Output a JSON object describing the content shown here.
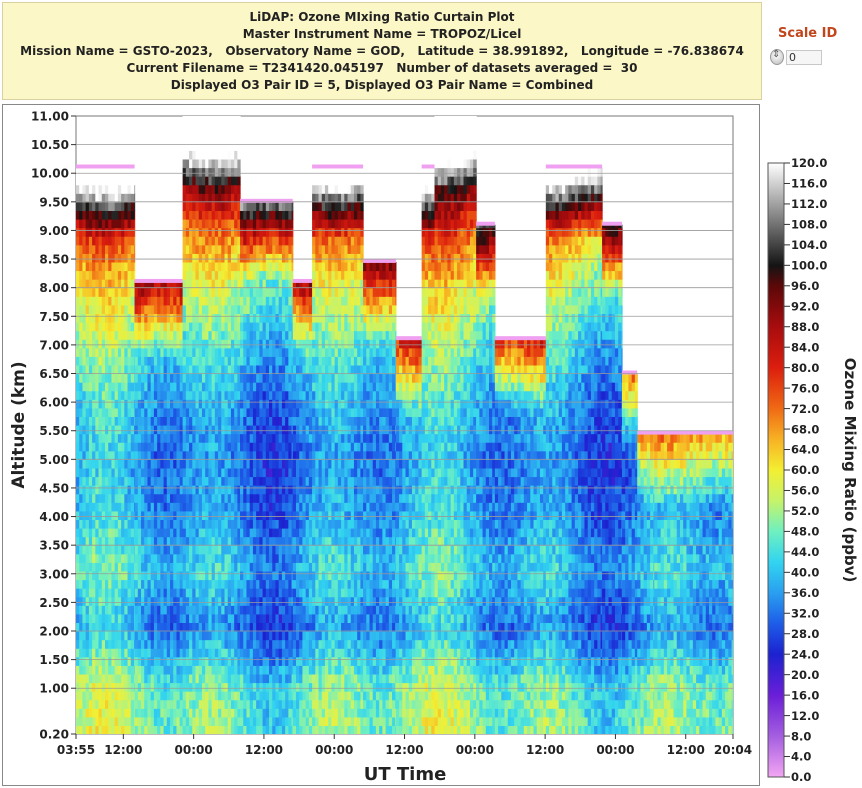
{
  "header": {
    "line1": "LiDAP: Ozone MIxing Ratio Curtain Plot",
    "line2": "Master Instrument Name = TROPOZ/Licel",
    "line3": "Mission Name = GSTO-2023,   Observatory Name = GOD,   Latitude = 38.991892,   Longitude = -76.838674",
    "line4": "Current Filename = T2341420.045197   Number of datasets averaged =  30",
    "line5": "Displayed O3 Pair ID = 5, Displayed O3 Pair Name = Combined"
  },
  "scale": {
    "label": "Scale ID",
    "value": "0"
  },
  "colors": {
    "header_bg": "#fbf7c6",
    "scale_label": "#c0461b",
    "top_marker": "#f0a0f0",
    "no_data": "#ffffff"
  },
  "chart_data": {
    "type": "heatmap",
    "title": "",
    "xlabel": "UT Time",
    "ylabel": "Altitude (km)",
    "colorbar_label": "Ozone Mixing Ratio (ppbv)",
    "x_ticks": [
      "03:55",
      "12:00",
      "00:00",
      "12:00",
      "00:00",
      "12:00",
      "00:00",
      "12:00",
      "00:00",
      "12:00",
      "20:04"
    ],
    "x_tick_hours": [
      0,
      8.08,
      20.08,
      32.08,
      44.08,
      56.08,
      68.08,
      80.08,
      92.08,
      104.08,
      112.15
    ],
    "x_range_hours": [
      0,
      112.15
    ],
    "y_ticks": [
      "0.20",
      "1.00",
      "1.50",
      "2.00",
      "2.50",
      "3.00",
      "3.50",
      "4.00",
      "4.50",
      "5.00",
      "5.50",
      "6.00",
      "6.50",
      "7.00",
      "7.50",
      "8.00",
      "8.50",
      "9.00",
      "9.50",
      "10.00",
      "10.50",
      "11.00"
    ],
    "y_range_km": [
      0.2,
      11.0
    ],
    "colorbar_ticks": [
      "0.0",
      "4.0",
      "8.0",
      "12.0",
      "16.0",
      "20.0",
      "24.0",
      "28.0",
      "32.0",
      "36.0",
      "40.0",
      "44.0",
      "48.0",
      "52.0",
      "56.0",
      "60.0",
      "64.0",
      "68.0",
      "72.0",
      "76.0",
      "80.0",
      "84.0",
      "88.0",
      "92.0",
      "96.0",
      "100.0",
      "104.0",
      "108.0",
      "112.0",
      "116.0",
      "120.0"
    ],
    "colorbar_range": [
      0,
      120
    ],
    "data_columns": [
      {
        "t0": 0.0,
        "t1": 10.0,
        "top_km": 10.1
      },
      {
        "t0": 10.0,
        "t1": 18.2,
        "top_km": 8.1
      },
      {
        "t0": 18.2,
        "t1": 28.0,
        "top_km": 11.0
      },
      {
        "t0": 28.0,
        "t1": 37.0,
        "top_km": 9.5
      },
      {
        "t0": 37.0,
        "t1": 40.3,
        "top_km": 8.1
      },
      {
        "t0": 40.3,
        "t1": 49.0,
        "top_km": 10.1
      },
      {
        "t0": 49.0,
        "t1": 54.6,
        "top_km": 8.45
      },
      {
        "t0": 54.6,
        "t1": 59.0,
        "top_km": 7.1
      },
      {
        "t0": 59.0,
        "t1": 61.2,
        "top_km": 10.1
      },
      {
        "t0": 61.2,
        "t1": 68.3,
        "top_km": 11.0
      },
      {
        "t0": 68.3,
        "t1": 71.5,
        "top_km": 9.1
      },
      {
        "t0": 71.5,
        "t1": 80.2,
        "top_km": 7.1
      },
      {
        "t0": 80.2,
        "t1": 89.8,
        "top_km": 10.1
      },
      {
        "t0": 89.8,
        "t1": 93.2,
        "top_km": 9.1
      },
      {
        "t0": 93.2,
        "t1": 95.8,
        "top_km": 6.5
      },
      {
        "t0": 95.8,
        "t1": 98.7,
        "top_km": 5.45
      },
      {
        "t0": 98.7,
        "t1": 112.15,
        "top_km": 5.45
      }
    ],
    "approx_profile_ppbv": [
      {
        "alt_km": 0.3,
        "o3": 50
      },
      {
        "alt_km": 1.0,
        "o3": 48
      },
      {
        "alt_km": 2.0,
        "o3": 34
      },
      {
        "alt_km": 3.0,
        "o3": 42
      },
      {
        "alt_km": 4.0,
        "o3": 36
      },
      {
        "alt_km": 5.0,
        "o3": 34
      },
      {
        "alt_km": 6.0,
        "o3": 38
      },
      {
        "alt_km": 7.0,
        "o3": 46
      },
      {
        "alt_km": 8.0,
        "o3": 56
      },
      {
        "alt_km": 9.0,
        "o3": 72
      },
      {
        "alt_km": 10.0,
        "o3": 100
      },
      {
        "alt_km": 11.0,
        "o3": 120
      }
    ]
  }
}
